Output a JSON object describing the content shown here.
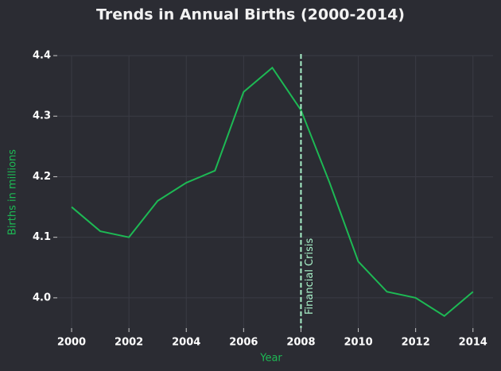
{
  "chart_data": {
    "type": "line",
    "title": "Trends in Annual Births (2000-2014)",
    "x_label": "Year",
    "y_label": "Births in millions",
    "x": [
      2000,
      2001,
      2002,
      2003,
      2004,
      2005,
      2006,
      2007,
      2008,
      2009,
      2010,
      2011,
      2012,
      2013,
      2014
    ],
    "values": [
      4.15,
      4.11,
      4.1,
      4.16,
      4.19,
      4.21,
      4.34,
      4.38,
      4.31,
      4.19,
      4.06,
      4.01,
      4.0,
      3.97,
      4.01
    ],
    "color": "#1db954",
    "xlim": [
      1999.5,
      2014.7
    ],
    "ylim": [
      3.95,
      4.4
    ],
    "xticks": [
      2000,
      2002,
      2004,
      2006,
      2008,
      2010,
      2012,
      2014
    ],
    "yticks": [
      {
        "value": 4,
        "label": "4.0"
      },
      4.1,
      4.2,
      4.3,
      4.4
    ],
    "grid": true,
    "annotations": [
      {
        "x": 2008,
        "text": "Financial Crisis",
        "color": "#a8f0c8"
      }
    ]
  }
}
